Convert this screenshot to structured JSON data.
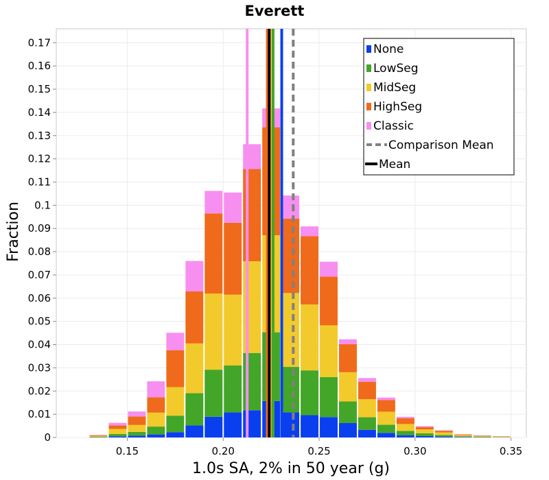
{
  "chart_data": {
    "type": "bar",
    "stacked": true,
    "title": "Everett",
    "xlabel": "1.0s SA, 2% in 50 year (g)",
    "ylabel": "Fraction",
    "xlim": [
      0.113,
      0.358
    ],
    "ylim": [
      0,
      0.176
    ],
    "bin_width": 0.01,
    "x_ticks": [
      0.15,
      0.2,
      0.25,
      0.3,
      0.35
    ],
    "x_tick_labels": [
      "0.15",
      "0.20",
      "0.25",
      "0.30",
      "0.35"
    ],
    "y_ticks": [
      0,
      0.01,
      0.02,
      0.03,
      0.04,
      0.05,
      0.06,
      0.07,
      0.08,
      0.09,
      0.1,
      0.11,
      0.12,
      0.13,
      0.14,
      0.15,
      0.16,
      0.17
    ],
    "y_tick_labels": [
      "0",
      "0.01",
      "0.02",
      "0.03",
      "0.04",
      "0.05",
      "0.06",
      "0.07",
      "0.08",
      "0.09",
      "0.1",
      "0.11",
      "0.12",
      "0.13",
      "0.14",
      "0.15",
      "0.16",
      "0.17"
    ],
    "grid": true,
    "legend_position": "top-right",
    "x": [
      0.135,
      0.145,
      0.155,
      0.165,
      0.175,
      0.185,
      0.195,
      0.205,
      0.215,
      0.225,
      0.235,
      0.245,
      0.255,
      0.265,
      0.275,
      0.285,
      0.295,
      0.305,
      0.315,
      0.325,
      0.335,
      0.345
    ],
    "series": [
      {
        "name": "None",
        "color": "#0a3ff0",
        "values": [
          0.0001,
          0.0005,
          0.0008,
          0.0013,
          0.0023,
          0.0052,
          0.0089,
          0.0108,
          0.0117,
          0.0157,
          0.0108,
          0.0096,
          0.0088,
          0.0062,
          0.0033,
          0.002,
          0.001,
          0.0006,
          0.0004,
          0.0002,
          0.0001,
          5e-05
        ]
      },
      {
        "name": "LowSeg",
        "color": "#43a628",
        "values": [
          0.0002,
          0.001,
          0.0016,
          0.0034,
          0.0071,
          0.0139,
          0.0203,
          0.0202,
          0.0247,
          0.0296,
          0.0196,
          0.0193,
          0.0172,
          0.0093,
          0.0054,
          0.0035,
          0.0018,
          0.0012,
          0.0007,
          0.0003,
          0.0002,
          0.0001
        ]
      },
      {
        "name": "MidSeg",
        "color": "#f2ca2b",
        "values": [
          0.0004,
          0.0022,
          0.003,
          0.006,
          0.0123,
          0.0214,
          0.0328,
          0.0305,
          0.0395,
          0.0418,
          0.0318,
          0.0284,
          0.0223,
          0.0126,
          0.0078,
          0.0056,
          0.003,
          0.0017,
          0.0011,
          0.0005,
          0.0003,
          0.0002
        ]
      },
      {
        "name": "HighSeg",
        "color": "#f06a1b",
        "values": [
          0.0003,
          0.0015,
          0.0036,
          0.0066,
          0.0159,
          0.0224,
          0.0345,
          0.031,
          0.0397,
          0.0465,
          0.032,
          0.0294,
          0.021,
          0.0121,
          0.0075,
          0.005,
          0.0025,
          0.001,
          0.0007,
          0.0003,
          0.0002,
          0.0001
        ]
      },
      {
        "name": "Classic",
        "color": "#f78ff0",
        "values": [
          0.0001,
          0.0011,
          0.0022,
          0.0069,
          0.0075,
          0.0131,
          0.0097,
          0.013,
          0.0107,
          0.0081,
          0.01,
          0.0042,
          0.0064,
          0.0021,
          0.0016,
          0.0011,
          0.0006,
          0.0004,
          0.0002,
          0.0001,
          0.0001,
          0.0001
        ]
      }
    ],
    "mean_lines": [
      {
        "name": "None",
        "color": "#0a3ff0",
        "x": 0.2305
      },
      {
        "name": "LowSeg",
        "color": "#43a628",
        "x": 0.226
      },
      {
        "name": "MidSeg",
        "color": "#f2ca2b",
        "x": 0.2245
      },
      {
        "name": "HighSeg",
        "color": "#f06a1b",
        "x": 0.223
      },
      {
        "name": "Classic",
        "color": "#f78ff0",
        "x": 0.2125
      }
    ],
    "comparison_mean": {
      "name": "Comparison Mean",
      "color": "#808080",
      "x": 0.2365
    },
    "overall_mean": {
      "name": "Mean",
      "color": "#000000",
      "x": 0.224
    },
    "legend": [
      {
        "label": "None",
        "type": "swatch",
        "color": "#0a3ff0"
      },
      {
        "label": "LowSeg",
        "type": "swatch",
        "color": "#43a628"
      },
      {
        "label": "MidSeg",
        "type": "swatch",
        "color": "#f2ca2b"
      },
      {
        "label": "HighSeg",
        "type": "swatch",
        "color": "#f06a1b"
      },
      {
        "label": "Classic",
        "type": "swatch",
        "color": "#f78ff0"
      },
      {
        "label": "Comparison Mean",
        "type": "dashed",
        "color": "#808080"
      },
      {
        "label": "Mean",
        "type": "solid",
        "color": "#000000"
      }
    ]
  }
}
